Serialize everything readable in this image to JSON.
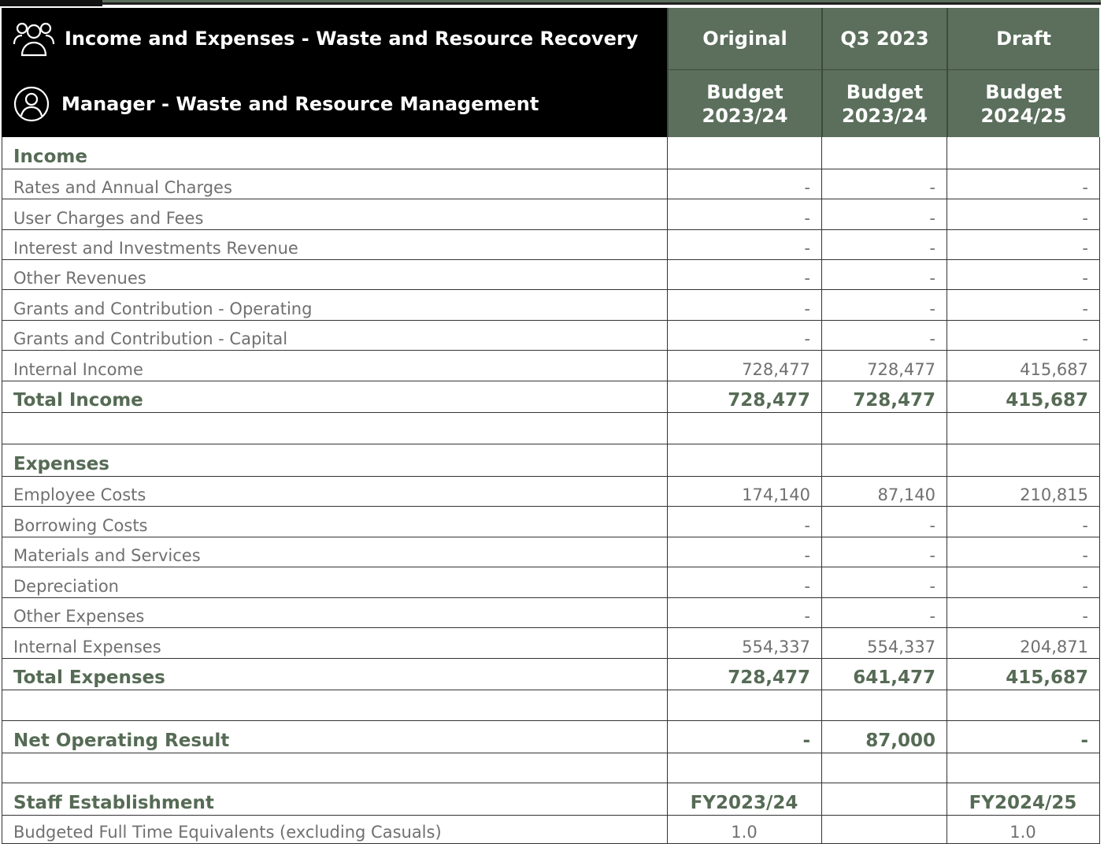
{
  "header": {
    "title": "Income and Expenses - Waste and Resource Recovery",
    "manager": "Manager - Waste and Resource Management",
    "columns": [
      {
        "top": "Original",
        "bottom": "Budget 2023/24"
      },
      {
        "top": "Q3 2023",
        "bottom": "Budget 2023/24"
      },
      {
        "top": "Draft",
        "bottom": "Budget 2024/25"
      }
    ]
  },
  "income": {
    "heading": "Income",
    "items": [
      [
        "Rates and Annual Charges",
        "-",
        "-",
        "-"
      ],
      [
        "User Charges and Fees",
        "-",
        "-",
        "-"
      ],
      [
        "Interest and Investments Revenue",
        "-",
        "-",
        "-"
      ],
      [
        "Other Revenues",
        "-",
        "-",
        "-"
      ],
      [
        "Grants and Contribution - Operating",
        "-",
        "-",
        "-"
      ],
      [
        "Grants and Contribution - Capital",
        "-",
        "-",
        "-"
      ],
      [
        "Internal Income",
        "728,477",
        "728,477",
        "415,687"
      ]
    ],
    "total": [
      "Total Income",
      "728,477",
      "728,477",
      "415,687"
    ]
  },
  "expenses": {
    "heading": "Expenses",
    "items": [
      [
        "Employee Costs",
        "174,140",
        "87,140",
        "210,815"
      ],
      [
        "Borrowing Costs",
        "-",
        "-",
        "-"
      ],
      [
        "Materials and Services",
        "-",
        "-",
        "-"
      ],
      [
        "Depreciation",
        "-",
        "-",
        "-"
      ],
      [
        "Other Expenses",
        "-",
        "-",
        "-"
      ],
      [
        "Internal Expenses",
        "554,337",
        "554,337",
        "204,871"
      ]
    ],
    "total": [
      "Total Expenses",
      "728,477",
      "641,477",
      "415,687"
    ]
  },
  "net": [
    "Net Operating Result",
    "-",
    "87,000",
    "-"
  ],
  "staff": {
    "heading": [
      "Staff Establishment",
      "FY2023/24",
      "FY2024/25"
    ],
    "row": [
      "Budgeted Full Time Equivalents (excluding Casuals)",
      "1.0",
      "1.0"
    ]
  }
}
